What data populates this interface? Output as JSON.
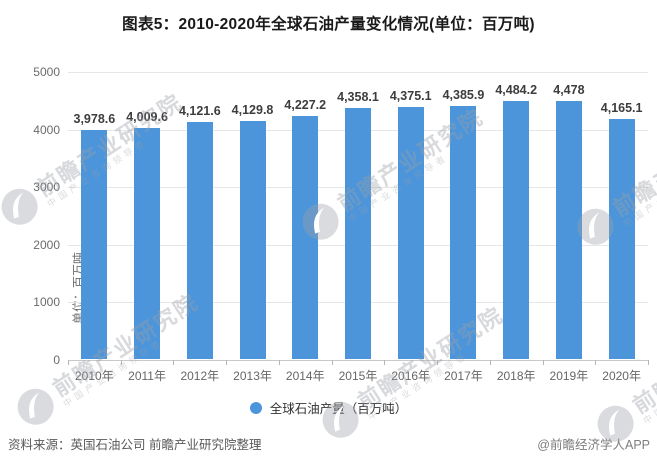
{
  "title": "图表5：2010-2020年全球石油产量变化情况(单位：百万吨)",
  "chart_data": {
    "type": "bar",
    "title": "图表5：2010-2020年全球石油产量变化情况(单位：百万吨)",
    "categories": [
      "2010年",
      "2011年",
      "2012年",
      "2013年",
      "2014年",
      "2015年",
      "2016年",
      "2017年",
      "2018年",
      "2019年",
      "2020年"
    ],
    "values": [
      3978.6,
      4009.6,
      4121.6,
      4129.8,
      4227.2,
      4358.1,
      4375.1,
      4385.9,
      4484.2,
      4478,
      4165.1
    ],
    "value_labels": [
      "3,978.6",
      "4,009.6",
      "4,121.6",
      "4,129.8",
      "4,227.2",
      "4,358.1",
      "4,375.1",
      "4,385.9",
      "4,484.2",
      "4,478",
      "4,165.1"
    ],
    "series_name": "全球石油产量（百万吨）",
    "xlabel": "",
    "ylabel": "单位：百万吨",
    "ylim": [
      0,
      5000
    ],
    "yticks": [
      0,
      1000,
      2000,
      3000,
      4000,
      5000
    ],
    "grid": true,
    "legend_position": "bottom",
    "bar_color": "#4C95DB"
  },
  "legend": {
    "marker_color": "#4C95DB",
    "label": "全球石油产量（百万吨）"
  },
  "watermark": {
    "text": "前瞻产业研究院",
    "subtext": "中国产业咨询领导者"
  },
  "footer": {
    "source": "资料来源：英国石油公司 前瞻产业研究院整理",
    "credit": "@前瞻经济学人APP"
  },
  "colors": {
    "bar": "#4C95DB",
    "gridline": "#e6e6e6",
    "axis_text": "#6b6b6b",
    "label_text": "#3d3d3d"
  }
}
